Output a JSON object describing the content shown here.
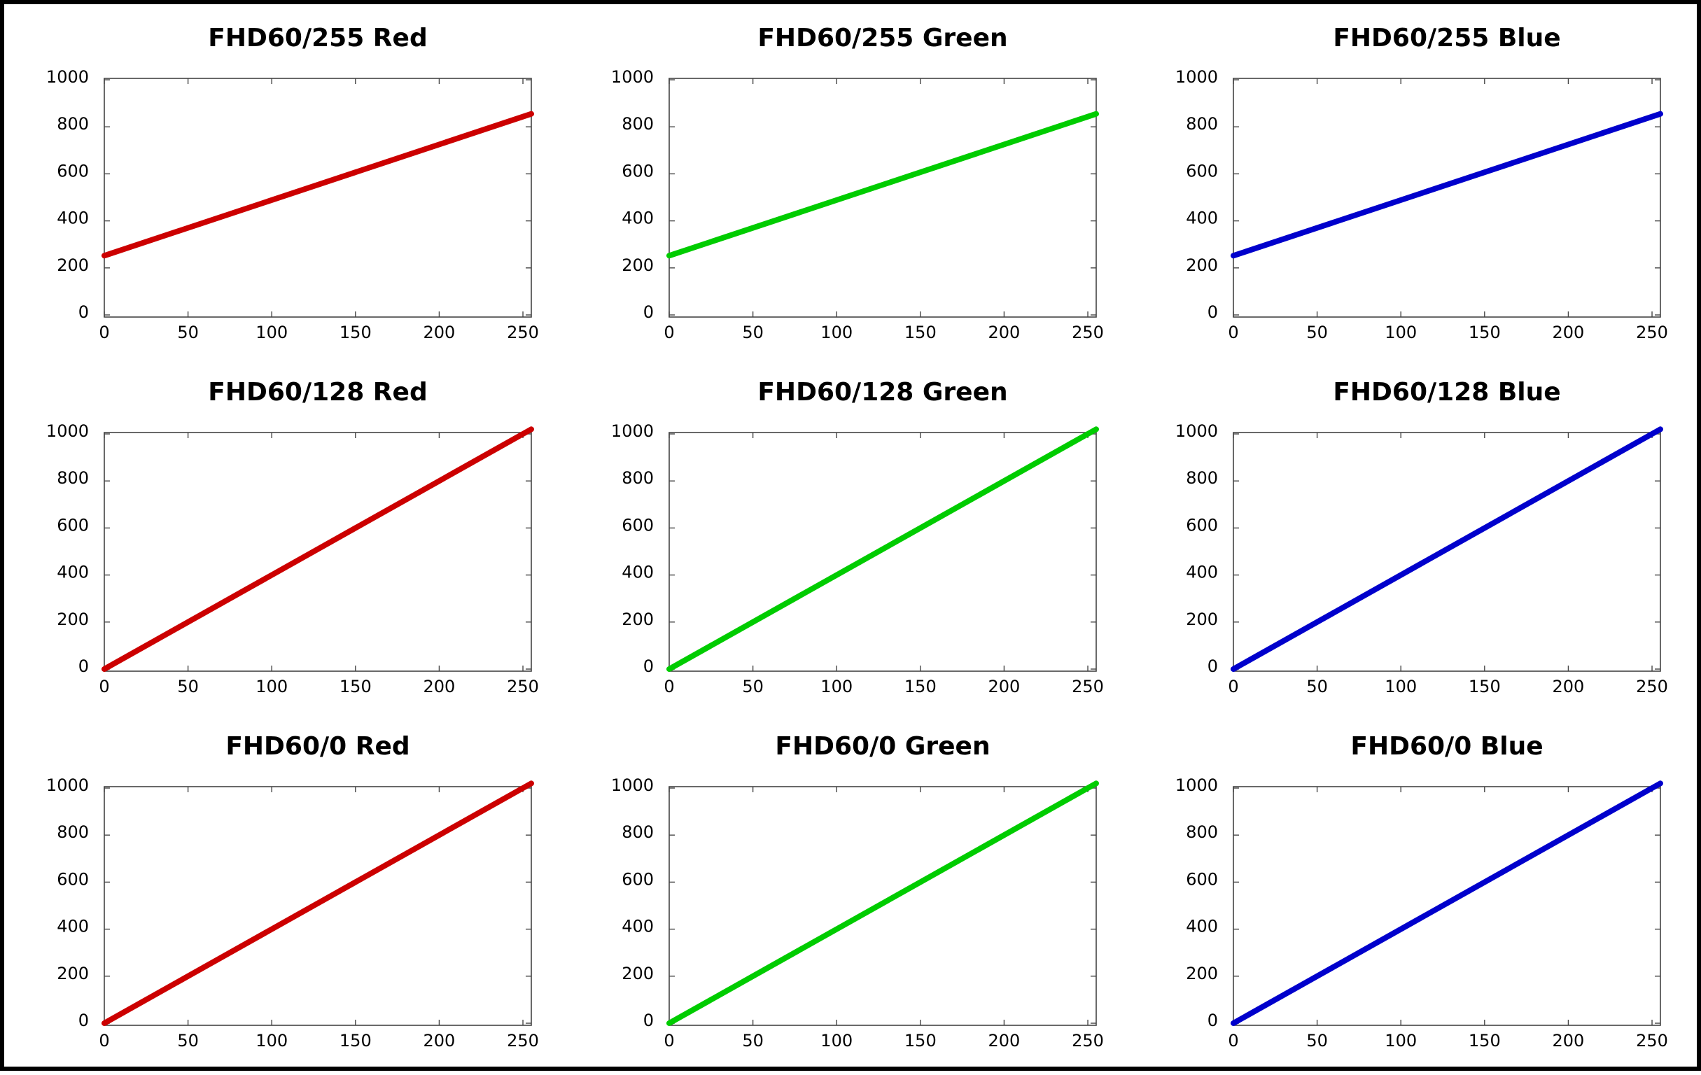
{
  "colors": {
    "red": "#cc0000",
    "green": "#00cc00",
    "blue": "#0000cc"
  },
  "chart_data": [
    {
      "type": "line",
      "title": "FHD60/255 Red",
      "color": "red",
      "xlim": [
        0,
        255
      ],
      "ylim": [
        0,
        1000
      ],
      "xticks": [
        0,
        50,
        100,
        150,
        200,
        250
      ],
      "yticks": [
        0,
        200,
        400,
        600,
        800,
        1000
      ],
      "series": [
        {
          "x": [
            0,
            255
          ],
          "y": [
            252,
            855
          ]
        }
      ]
    },
    {
      "type": "line",
      "title": "FHD60/255 Green",
      "color": "green",
      "xlim": [
        0,
        255
      ],
      "ylim": [
        0,
        1000
      ],
      "xticks": [
        0,
        50,
        100,
        150,
        200,
        250
      ],
      "yticks": [
        0,
        200,
        400,
        600,
        800,
        1000
      ],
      "series": [
        {
          "x": [
            0,
            255
          ],
          "y": [
            252,
            855
          ]
        }
      ]
    },
    {
      "type": "line",
      "title": "FHD60/255 Blue",
      "color": "blue",
      "xlim": [
        0,
        255
      ],
      "ylim": [
        0,
        1000
      ],
      "xticks": [
        0,
        50,
        100,
        150,
        200,
        250
      ],
      "yticks": [
        0,
        200,
        400,
        600,
        800,
        1000
      ],
      "series": [
        {
          "x": [
            0,
            255
          ],
          "y": [
            252,
            855
          ]
        }
      ]
    },
    {
      "type": "line",
      "title": "FHD60/128 Red",
      "color": "red",
      "xlim": [
        0,
        255
      ],
      "ylim": [
        0,
        1000
      ],
      "xticks": [
        0,
        50,
        100,
        150,
        200,
        250
      ],
      "yticks": [
        0,
        200,
        400,
        600,
        800,
        1000
      ],
      "series": [
        {
          "x": [
            0,
            255
          ],
          "y": [
            0,
            1020
          ]
        }
      ]
    },
    {
      "type": "line",
      "title": "FHD60/128 Green",
      "color": "green",
      "xlim": [
        0,
        255
      ],
      "ylim": [
        0,
        1000
      ],
      "xticks": [
        0,
        50,
        100,
        150,
        200,
        250
      ],
      "yticks": [
        0,
        200,
        400,
        600,
        800,
        1000
      ],
      "series": [
        {
          "x": [
            0,
            255
          ],
          "y": [
            0,
            1020
          ]
        }
      ]
    },
    {
      "type": "line",
      "title": "FHD60/128 Blue",
      "color": "blue",
      "xlim": [
        0,
        255
      ],
      "ylim": [
        0,
        1000
      ],
      "xticks": [
        0,
        50,
        100,
        150,
        200,
        250
      ],
      "yticks": [
        0,
        200,
        400,
        600,
        800,
        1000
      ],
      "series": [
        {
          "x": [
            0,
            255
          ],
          "y": [
            0,
            1020
          ]
        }
      ]
    },
    {
      "type": "line",
      "title": "FHD60/0 Red",
      "color": "red",
      "xlim": [
        0,
        255
      ],
      "ylim": [
        0,
        1000
      ],
      "xticks": [
        0,
        50,
        100,
        150,
        200,
        250
      ],
      "yticks": [
        0,
        200,
        400,
        600,
        800,
        1000
      ],
      "series": [
        {
          "x": [
            0,
            255
          ],
          "y": [
            0,
            1020
          ]
        }
      ]
    },
    {
      "type": "line",
      "title": "FHD60/0 Green",
      "color": "green",
      "xlim": [
        0,
        255
      ],
      "ylim": [
        0,
        1000
      ],
      "xticks": [
        0,
        50,
        100,
        150,
        200,
        250
      ],
      "yticks": [
        0,
        200,
        400,
        600,
        800,
        1000
      ],
      "series": [
        {
          "x": [
            0,
            255
          ],
          "y": [
            0,
            1020
          ]
        }
      ]
    },
    {
      "type": "line",
      "title": "FHD60/0 Blue",
      "color": "blue",
      "xlim": [
        0,
        255
      ],
      "ylim": [
        0,
        1000
      ],
      "xticks": [
        0,
        50,
        100,
        150,
        200,
        250
      ],
      "yticks": [
        0,
        200,
        400,
        600,
        800,
        1000
      ],
      "series": [
        {
          "x": [
            0,
            255
          ],
          "y": [
            0,
            1020
          ]
        }
      ]
    }
  ]
}
